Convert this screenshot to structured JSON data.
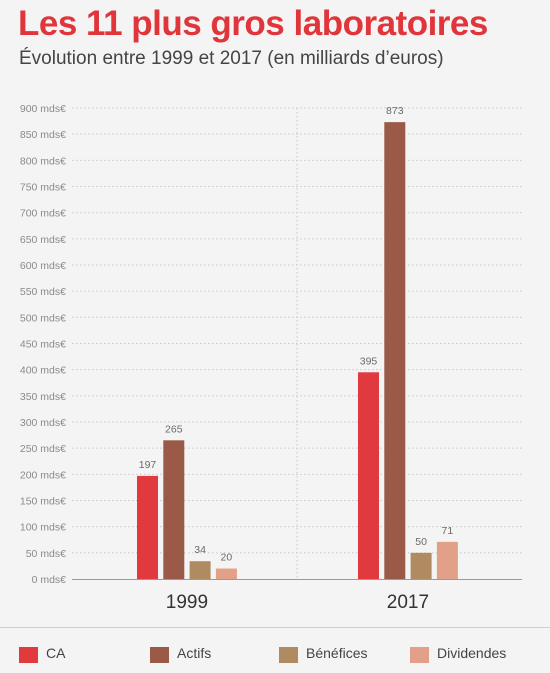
{
  "title": "Les 11 plus gros laboratoires",
  "subtitle": "Évolution entre 1999 et 2017 (en milliards d’euros)",
  "colors": {
    "CA": "#e0393e",
    "Actifs": "#9b5a48",
    "Bénéfices": "#b08b62",
    "Dividendes": "#e3a089"
  },
  "chart_data": {
    "type": "bar",
    "title": "Les 11 plus gros laboratoires",
    "subtitle": "Évolution entre 1999 et 2017 (en milliards d’euros)",
    "categories": [
      "1999",
      "2017"
    ],
    "series": [
      {
        "name": "CA",
        "values": [
          197,
          395
        ]
      },
      {
        "name": "Actifs",
        "values": [
          265,
          873
        ]
      },
      {
        "name": "Bénéfices",
        "values": [
          34,
          50
        ]
      },
      {
        "name": "Dividendes",
        "values": [
          20,
          71
        ]
      }
    ],
    "ylim": [
      0,
      900
    ],
    "yticks": [
      {
        "value": 0,
        "label": "0 mds€"
      },
      {
        "value": 50,
        "label": "50 mds€"
      },
      {
        "value": 100,
        "label": "100 mds€"
      },
      {
        "value": 150,
        "label": "150 mds€"
      },
      {
        "value": 200,
        "label": "200 mds€"
      },
      {
        "value": 250,
        "label": "250 mds€"
      },
      {
        "value": 300,
        "label": "300 mds€"
      },
      {
        "value": 350,
        "label": "350 mds€"
      },
      {
        "value": 400,
        "label": "400 mds€"
      },
      {
        "value": 450,
        "label": "450 mds€"
      },
      {
        "value": 500,
        "label": "500 mds€"
      },
      {
        "value": 550,
        "label": "550 mds€"
      },
      {
        "value": 600,
        "label": "600 mds€"
      },
      {
        "value": 650,
        "label": "650 mds€"
      },
      {
        "value": 700,
        "label": "700 mds€"
      },
      {
        "value": 750,
        "label": "750 mds€"
      },
      {
        "value": 800,
        "label": "800 mds€"
      },
      {
        "value": 850,
        "label": "850 mds€"
      },
      {
        "value": 900,
        "label": "900 mds€"
      }
    ],
    "grid": true,
    "legend": "bottom",
    "data_labels": true
  }
}
